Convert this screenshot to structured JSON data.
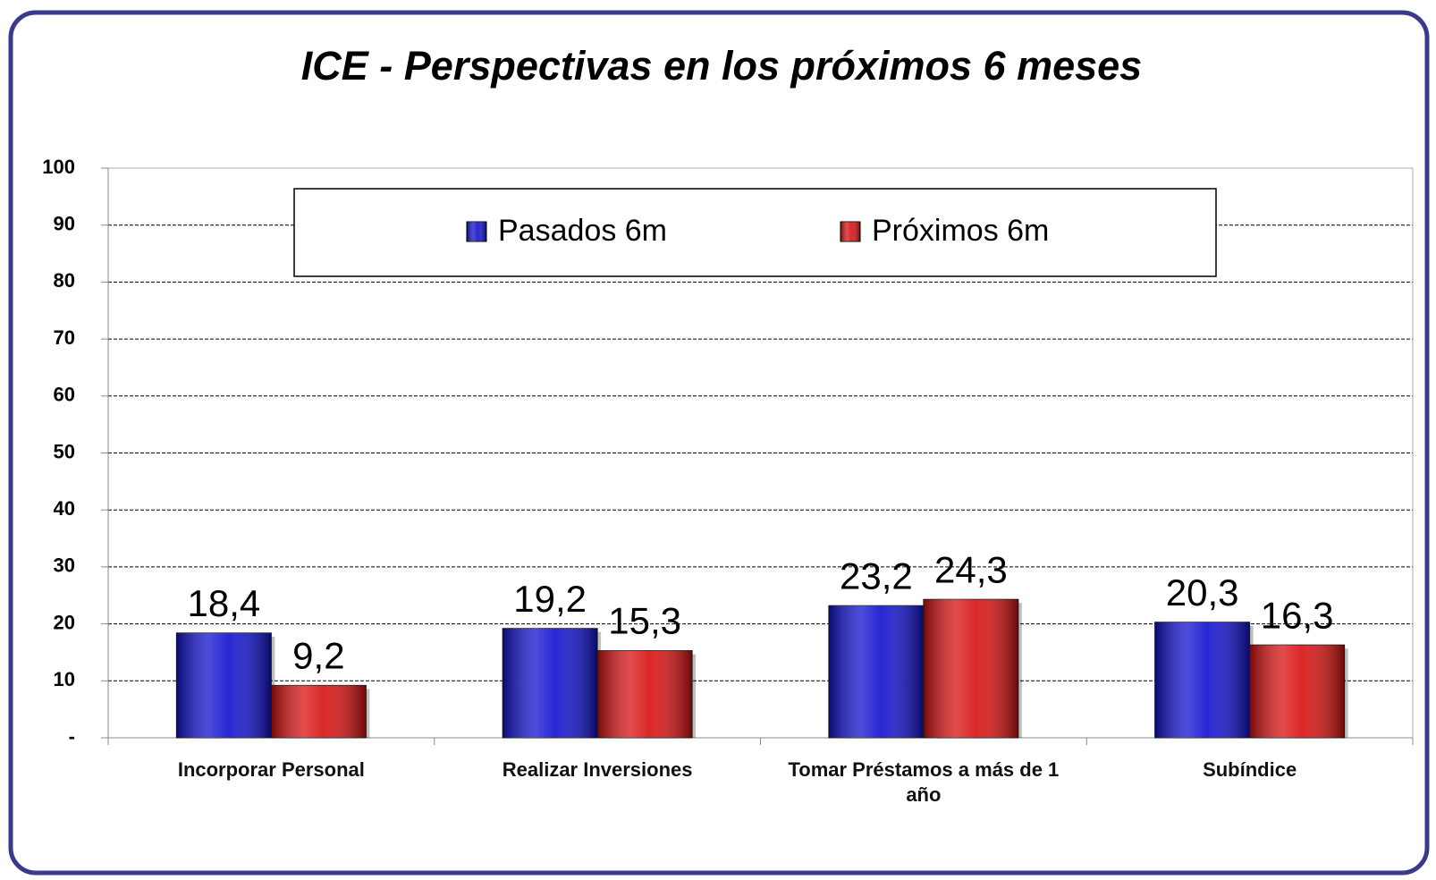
{
  "chart_data": {
    "type": "bar",
    "title": "ICE - Perspectivas en los próximos 6 meses",
    "categories": [
      "Incorporar Personal",
      "Realizar Inversiones",
      "Tomar Préstamos  a más de 1 año",
      "Subíndice"
    ],
    "series": [
      {
        "name": "Pasados 6m",
        "color": "#1010d0",
        "values": [
          18.4,
          19.2,
          23.2,
          20.3
        ],
        "value_labels": [
          "18,4",
          "19,2",
          "23,2",
          "20,3"
        ]
      },
      {
        "name": "Próximos 6m",
        "color": "#d81010",
        "values": [
          9.2,
          15.3,
          24.3,
          16.3
        ],
        "value_labels": [
          "9,2",
          "15,3",
          "24,3",
          "16,3"
        ]
      }
    ],
    "ylim": [
      0,
      100
    ],
    "yticks": [
      {
        "value": 0,
        "label": "-"
      },
      10,
      20,
      30,
      40,
      50,
      60,
      70,
      80,
      90,
      100
    ],
    "grid": true
  }
}
